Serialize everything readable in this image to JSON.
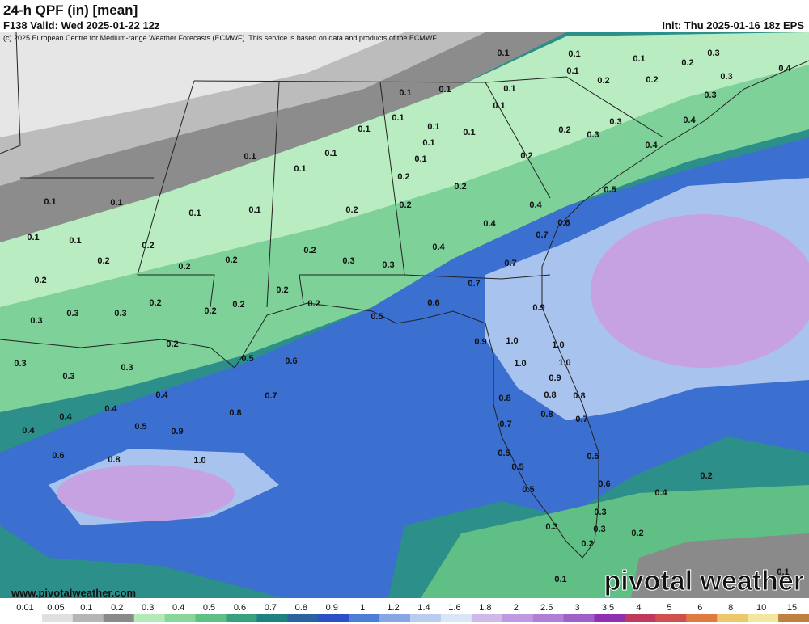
{
  "header": {
    "title": "24-h QPF (in) [mean]",
    "valid": "F138 Valid: Wed 2025-01-22 12z",
    "init": "Init: Thu 2025-01-16 18z EPS",
    "credit": "(c) 2025 European Centre for Medium-range Weather Forecasts (ECMWF). This service is based on data and products of the ECMWF."
  },
  "map": {
    "labels": [
      "0.1",
      "0.1",
      "0.1",
      "0.2",
      "0.3",
      "0.1",
      "0.2",
      "0.2",
      "0.3",
      "0.4",
      "0.1",
      "0.1",
      "0.1",
      "0.1",
      "0.3",
      "0.1",
      "0.1",
      "0.1",
      "0.1",
      "0.2",
      "0.3",
      "0.3",
      "0.4",
      "0.1",
      "0.1",
      "0.1",
      "0.1",
      "0.2",
      "0.4",
      "0.1",
      "0.2",
      "0.2",
      "0.5",
      "0.1",
      "0.1",
      "0.1",
      "0.1",
      "0.2",
      "0.2",
      "0.4",
      "0.4",
      "0.6",
      "0.1",
      "0.1",
      "0.2",
      "0.4",
      "0.7",
      "0.2",
      "0.2",
      "0.2",
      "0.2",
      "0.3",
      "0.3",
      "0.7",
      "0.2",
      "0.7",
      "0.2",
      "0.3",
      "0.3",
      "0.2",
      "0.2",
      "0.2",
      "0.2",
      "0.6",
      "0.9",
      "0.3",
      "0.5",
      "0.2",
      "0.9",
      "1.0",
      "1.0",
      "0.3",
      "0.5",
      "0.6",
      "0.3",
      "1.0",
      "1.0",
      "0.3",
      "0.9",
      "0.4",
      "0.7",
      "0.8",
      "0.8",
      "0.8",
      "0.4",
      "0.4",
      "0.8",
      "0.8",
      "0.7",
      "0.7",
      "0.4",
      "0.5",
      "0.9",
      "0.6",
      "0.8",
      "1.0",
      "0.5",
      "0.5",
      "0.5",
      "0.2",
      "0.5",
      "0.6",
      "0.4",
      "0.3",
      "0.3",
      "0.3",
      "0.2",
      "0.2",
      "0.1",
      "0.1"
    ]
  },
  "footer": {
    "url": "www.pivotalweather.com",
    "logo": "pivotal weather"
  },
  "colorbar": {
    "labels": [
      "0.01",
      "0.05",
      "0.1",
      "0.2",
      "0.3",
      "0.4",
      "0.5",
      "0.6",
      "0.7",
      "0.8",
      "0.9",
      "1",
      "1.2",
      "1.4",
      "1.6",
      "1.8",
      "2",
      "2.5",
      "3",
      "3.5",
      "4",
      "5",
      "6",
      "8",
      "10",
      "15"
    ]
  }
}
